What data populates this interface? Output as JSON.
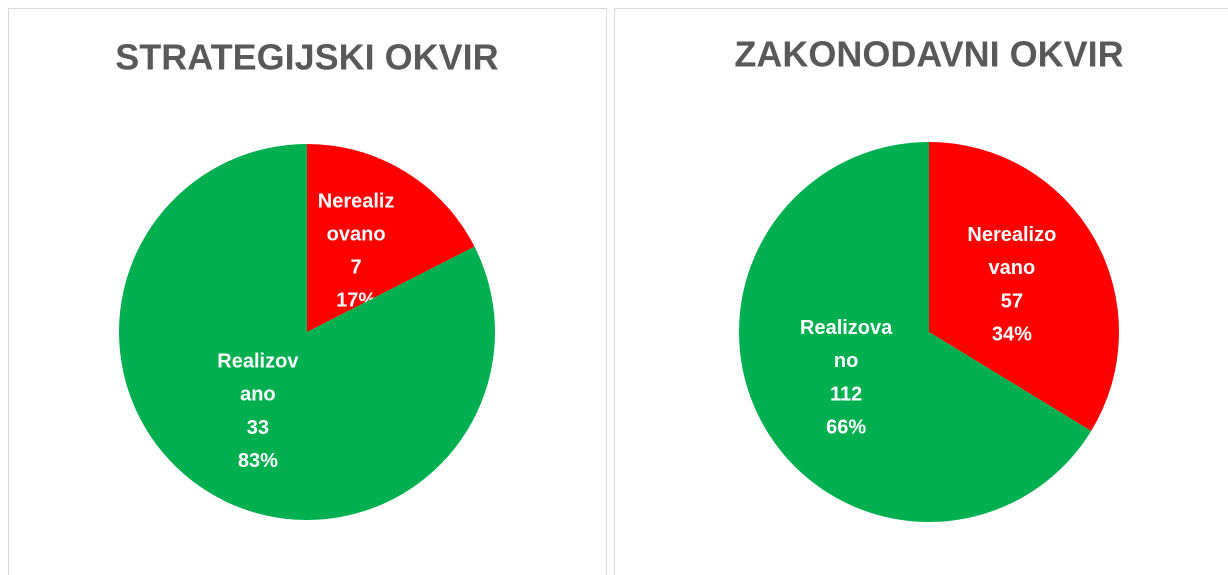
{
  "chart_data": [
    {
      "type": "pie",
      "title": "STRATEGIJSKI OKVIR",
      "categories": [
        "Nerealizovano",
        "Realizovano"
      ],
      "values": [
        7,
        33
      ],
      "percentages": [
        17,
        83
      ],
      "percentage_labels": [
        "17%",
        "83%"
      ],
      "colors": [
        "#ff0000",
        "#00b050"
      ]
    },
    {
      "type": "pie",
      "title": "ZAKONODAVNI OKVIR",
      "categories": [
        "Nerealizovano",
        "Realizovano"
      ],
      "values": [
        57,
        112
      ],
      "percentages": [
        34,
        66
      ],
      "percentage_labels": [
        "34%",
        "66%"
      ],
      "colors": [
        "#ff0000",
        "#00b050"
      ]
    }
  ]
}
